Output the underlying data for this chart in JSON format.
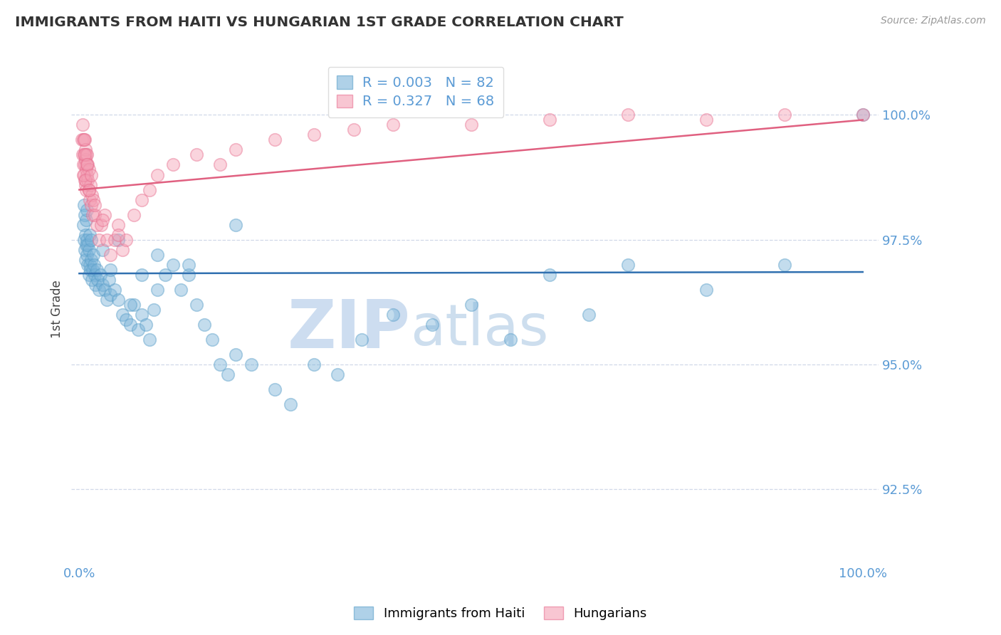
{
  "title": "IMMIGRANTS FROM HAITI VS HUNGARIAN 1ST GRADE CORRELATION CHART",
  "source_text": "Source: ZipAtlas.com",
  "ylabel": "1st Grade",
  "xlim": [
    -1.0,
    102.0
  ],
  "ylim": [
    91.0,
    101.2
  ],
  "yticks": [
    92.5,
    95.0,
    97.5,
    100.0
  ],
  "xticks": [
    0.0,
    100.0
  ],
  "xticklabels": [
    "0.0%",
    "100.0%"
  ],
  "yticklabels": [
    "92.5%",
    "95.0%",
    "97.5%",
    "100.0%"
  ],
  "haiti_R": 0.003,
  "haiti_N": 82,
  "hungarian_R": 0.327,
  "hungarian_N": 68,
  "haiti_color": "#7ab3d9",
  "hungarian_color": "#f4a0b5",
  "haiti_edge_color": "#5a9fc9",
  "hungarian_edge_color": "#e87090",
  "haiti_trend_color": "#3070b0",
  "hungarian_trend_color": "#e06080",
  "legend_haiti_label": "Immigrants from Haiti",
  "legend_hungarian_label": "Hungarians",
  "title_color": "#333333",
  "axis_tick_color": "#5b9bd5",
  "watermark_zip": "ZIP",
  "watermark_atlas": "atlas",
  "haiti_trend_y0": 96.82,
  "haiti_trend_y1": 96.85,
  "hungarian_trend_y0": 98.5,
  "hungarian_trend_y1": 99.9,
  "haiti_x": [
    0.5,
    0.6,
    0.6,
    0.7,
    0.7,
    0.8,
    0.8,
    0.9,
    0.9,
    1.0,
    1.0,
    1.0,
    1.1,
    1.1,
    1.2,
    1.2,
    1.3,
    1.3,
    1.4,
    1.5,
    1.5,
    1.6,
    1.7,
    1.8,
    1.9,
    2.0,
    2.1,
    2.2,
    2.3,
    2.5,
    2.7,
    3.0,
    3.2,
    3.5,
    3.8,
    4.0,
    4.5,
    5.0,
    5.5,
    6.0,
    6.5,
    7.0,
    7.5,
    8.0,
    8.5,
    9.0,
    9.5,
    10.0,
    11.0,
    12.0,
    13.0,
    14.0,
    15.0,
    16.0,
    17.0,
    18.0,
    19.0,
    20.0,
    22.0,
    25.0,
    27.0,
    30.0,
    33.0,
    36.0,
    40.0,
    45.0,
    50.0,
    55.0,
    60.0,
    65.0,
    70.0,
    80.0,
    90.0,
    100.0,
    3.0,
    4.0,
    5.0,
    6.5,
    8.0,
    10.0,
    14.0,
    20.0
  ],
  "haiti_y": [
    97.8,
    97.5,
    98.2,
    97.3,
    98.0,
    97.1,
    97.6,
    97.4,
    97.9,
    97.2,
    97.5,
    98.1,
    97.0,
    97.4,
    96.8,
    97.3,
    97.0,
    97.6,
    96.9,
    97.1,
    97.5,
    96.7,
    96.9,
    97.2,
    97.0,
    96.8,
    96.6,
    96.9,
    96.7,
    96.5,
    96.8,
    96.6,
    96.5,
    96.3,
    96.7,
    96.4,
    96.5,
    96.3,
    96.0,
    95.9,
    95.8,
    96.2,
    95.7,
    96.0,
    95.8,
    95.5,
    96.1,
    96.5,
    96.8,
    97.0,
    96.5,
    96.8,
    96.2,
    95.8,
    95.5,
    95.0,
    94.8,
    95.2,
    95.0,
    94.5,
    94.2,
    95.0,
    94.8,
    95.5,
    96.0,
    95.8,
    96.2,
    95.5,
    96.8,
    96.0,
    97.0,
    96.5,
    97.0,
    100.0,
    97.3,
    96.9,
    97.5,
    96.2,
    96.8,
    97.2,
    97.0,
    97.8
  ],
  "hungarian_x": [
    0.3,
    0.4,
    0.4,
    0.5,
    0.5,
    0.6,
    0.6,
    0.7,
    0.7,
    0.7,
    0.8,
    0.8,
    0.8,
    0.9,
    0.9,
    0.9,
    1.0,
    1.0,
    1.0,
    1.1,
    1.1,
    1.2,
    1.2,
    1.3,
    1.4,
    1.5,
    1.6,
    1.7,
    1.8,
    2.0,
    2.2,
    2.5,
    2.8,
    3.2,
    3.5,
    4.0,
    4.5,
    5.0,
    5.5,
    6.0,
    7.0,
    8.0,
    9.0,
    10.0,
    12.0,
    15.0,
    18.0,
    20.0,
    25.0,
    30.0,
    35.0,
    40.0,
    50.0,
    60.0,
    70.0,
    80.0,
    90.0,
    100.0,
    0.5,
    0.6,
    0.7,
    0.8,
    1.0,
    1.2,
    1.5,
    2.0,
    3.0,
    5.0
  ],
  "hungarian_y": [
    99.5,
    99.2,
    99.8,
    99.0,
    99.5,
    98.8,
    99.2,
    99.0,
    99.5,
    98.7,
    99.1,
    98.6,
    99.3,
    98.9,
    99.2,
    98.5,
    99.0,
    98.8,
    99.2,
    98.7,
    99.0,
    98.5,
    98.9,
    98.3,
    98.6,
    98.2,
    98.4,
    98.0,
    98.3,
    98.0,
    97.8,
    97.5,
    97.8,
    98.0,
    97.5,
    97.2,
    97.5,
    97.8,
    97.3,
    97.5,
    98.0,
    98.3,
    98.5,
    98.8,
    99.0,
    99.2,
    99.0,
    99.3,
    99.5,
    99.6,
    99.7,
    99.8,
    99.8,
    99.9,
    100.0,
    99.9,
    100.0,
    100.0,
    98.8,
    99.5,
    99.2,
    98.7,
    99.0,
    98.5,
    98.8,
    98.2,
    97.9,
    97.6
  ]
}
